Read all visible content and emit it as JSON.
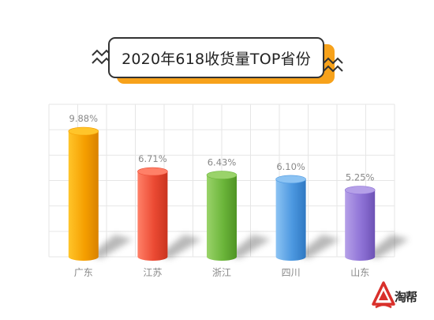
{
  "title": "2020年618收货量TOP省份",
  "watermark": "淘帮",
  "colors": {
    "accent": "#f7a21b",
    "grid": "#e6e6e6",
    "label": "#888888",
    "logo_red": "#d9302b"
  },
  "chart_data": {
    "type": "bar",
    "style": "3d-cylinder",
    "title": "2020年618收货量TOP省份",
    "xlabel": "",
    "ylabel": "",
    "categories": [
      "广东",
      "江苏",
      "浙江",
      "四川",
      "山东"
    ],
    "values": [
      9.88,
      6.71,
      6.43,
      6.1,
      5.25
    ],
    "value_labels": [
      "9.88%",
      "6.71%",
      "6.43%",
      "6.10%",
      "5.25%"
    ],
    "unit": "%",
    "ylim": [
      0,
      12
    ],
    "grid": true,
    "legend": "none",
    "bar_colors": [
      [
        "#ffc52a",
        "#f59e00",
        "#d98200"
      ],
      [
        "#ff8068",
        "#eb4a33",
        "#c9341f"
      ],
      [
        "#9ad36a",
        "#6bb53a",
        "#4f9424"
      ],
      [
        "#8cc3f3",
        "#4c98e0",
        "#2f78c2"
      ],
      [
        "#b5a0e8",
        "#8e72d6",
        "#6d52b5"
      ]
    ]
  }
}
